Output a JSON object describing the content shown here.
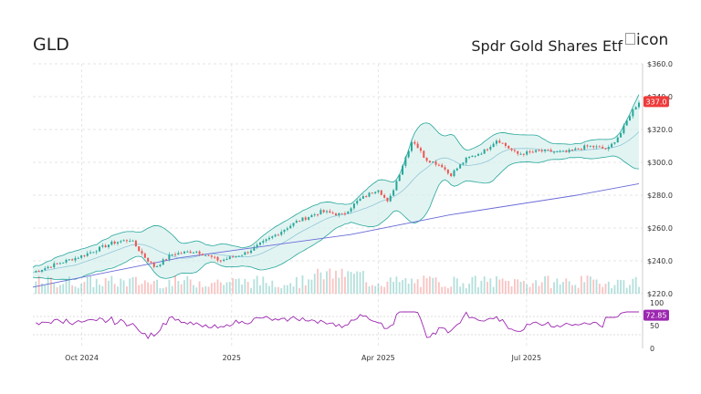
{
  "header": {
    "ticker": "GLD",
    "fund_name": "Spdr Gold Shares Etf",
    "logo_alt": "icon"
  },
  "colors": {
    "up": "#26a69a",
    "down": "#ef5350",
    "band_fill": "#d6f0ec",
    "band_line": "#26a69a",
    "ma_long": "#6a6ad8",
    "ma_mid": "#5aa8c8",
    "rsi": "#9c27b0",
    "price_badge": "#ef3b3b",
    "rsi_badge": "#9c27b0"
  },
  "chart_data": {
    "type": "candlestick",
    "price_axis": {
      "ticks": [
        "$220.0",
        "$240.0",
        "$260.0",
        "$280.0",
        "$300.0",
        "$320.0",
        "$340.0",
        "$360.0"
      ],
      "range": [
        220,
        360
      ]
    },
    "time_axis": {
      "ticks": [
        "Oct 2024",
        "2025",
        "Apr 2025",
        "Jul 2025"
      ]
    },
    "last_price": "337.0",
    "rsi": {
      "ticks": [
        "0",
        "50",
        "100"
      ],
      "range": [
        0,
        100
      ],
      "last_value": "72.85"
    },
    "bollinger_bands": true,
    "moving_average_long": [
      {
        "date": "2024-09-01",
        "value": 224
      },
      {
        "date": "2024-12-01",
        "value": 242
      },
      {
        "date": "2025-03-15",
        "value": 256
      },
      {
        "date": "2025-05-15",
        "value": 268
      },
      {
        "date": "2025-08-01",
        "value": 280
      },
      {
        "date": "2025-09-08",
        "value": 287
      }
    ],
    "price_series": [
      {
        "date": "2024-09-01",
        "value": 233
      },
      {
        "date": "2024-09-15",
        "value": 238
      },
      {
        "date": "2024-10-01",
        "value": 243
      },
      {
        "date": "2024-10-20",
        "value": 251
      },
      {
        "date": "2024-10-31",
        "value": 253
      },
      {
        "date": "2024-11-08",
        "value": 243
      },
      {
        "date": "2024-11-15",
        "value": 236
      },
      {
        "date": "2024-11-25",
        "value": 244
      },
      {
        "date": "2024-12-10",
        "value": 246
      },
      {
        "date": "2024-12-25",
        "value": 240
      },
      {
        "date": "2025-01-10",
        "value": 245
      },
      {
        "date": "2025-01-25",
        "value": 254
      },
      {
        "date": "2025-02-10",
        "value": 264
      },
      {
        "date": "2025-02-25",
        "value": 270
      },
      {
        "date": "2025-03-10",
        "value": 268
      },
      {
        "date": "2025-03-20",
        "value": 277
      },
      {
        "date": "2025-04-01",
        "value": 284
      },
      {
        "date": "2025-04-07",
        "value": 275
      },
      {
        "date": "2025-04-15",
        "value": 296
      },
      {
        "date": "2025-04-22",
        "value": 314
      },
      {
        "date": "2025-04-30",
        "value": 302
      },
      {
        "date": "2025-05-10",
        "value": 298
      },
      {
        "date": "2025-05-15",
        "value": 292
      },
      {
        "date": "2025-05-25",
        "value": 302
      },
      {
        "date": "2025-06-05",
        "value": 307
      },
      {
        "date": "2025-06-13",
        "value": 314
      },
      {
        "date": "2025-06-25",
        "value": 305
      },
      {
        "date": "2025-07-10",
        "value": 307
      },
      {
        "date": "2025-07-25",
        "value": 306
      },
      {
        "date": "2025-08-08",
        "value": 310
      },
      {
        "date": "2025-08-20",
        "value": 308
      },
      {
        "date": "2025-08-28",
        "value": 318
      },
      {
        "date": "2025-09-03",
        "value": 330
      },
      {
        "date": "2025-09-08",
        "value": 337
      }
    ]
  }
}
